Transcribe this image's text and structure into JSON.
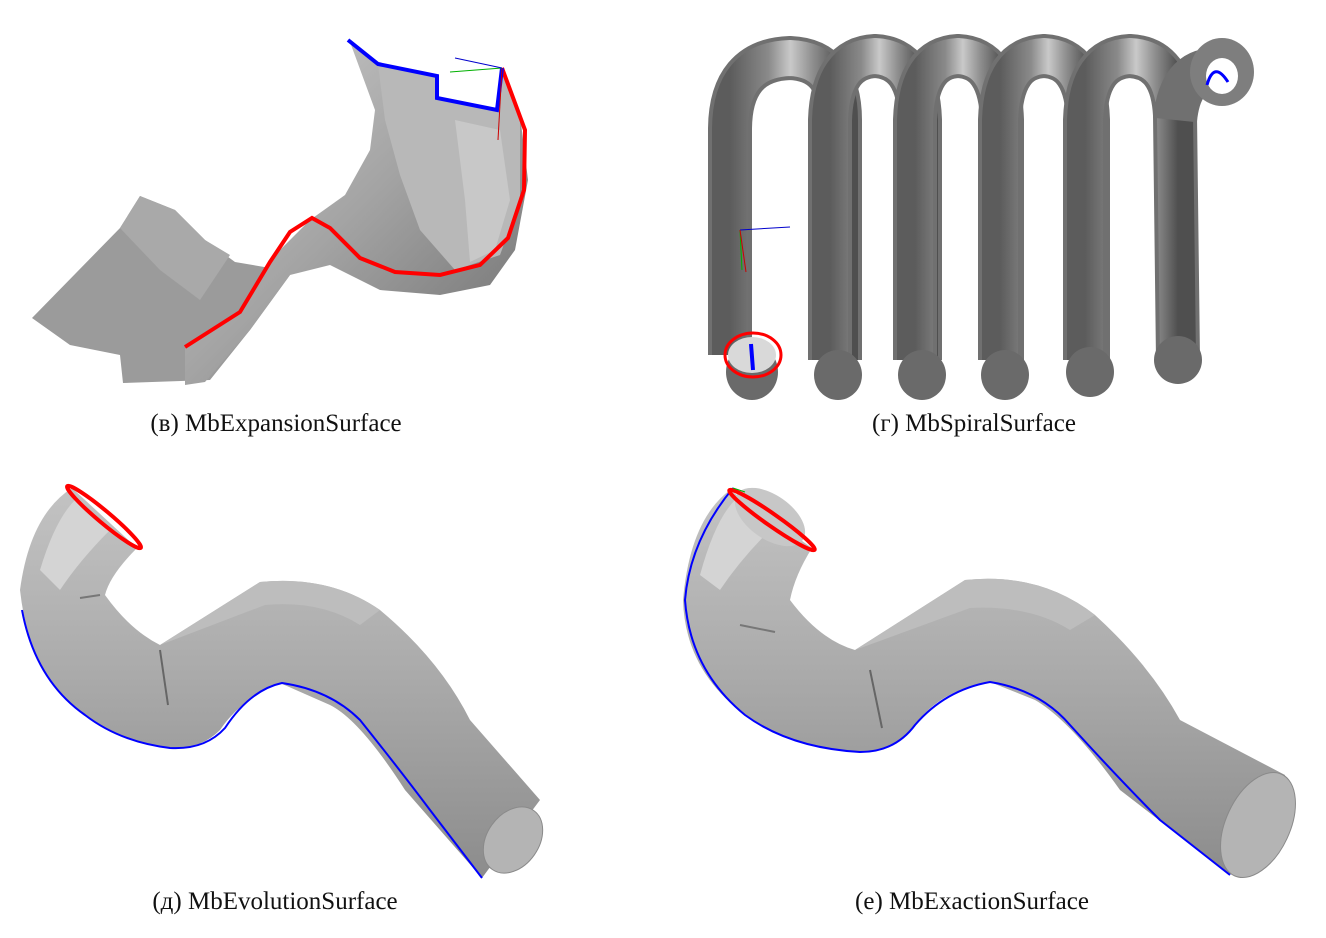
{
  "figures": [
    {
      "id": "v",
      "caption": "(в) MbExpansionSurface"
    },
    {
      "id": "g",
      "caption": "(г) MbSpiralSurface"
    },
    {
      "id": "d",
      "caption": "(д) MbEvolutionSurface"
    },
    {
      "id": "e",
      "caption": "(е) MbExactionSurface"
    }
  ],
  "colors": {
    "surface": "#9a9a9a",
    "surface_light": "#d6d6d6",
    "surface_dark": "#5e5e5e",
    "guide_red": "#ff0000",
    "guide_blue": "#0000ff",
    "axis_green": "#00b000"
  }
}
